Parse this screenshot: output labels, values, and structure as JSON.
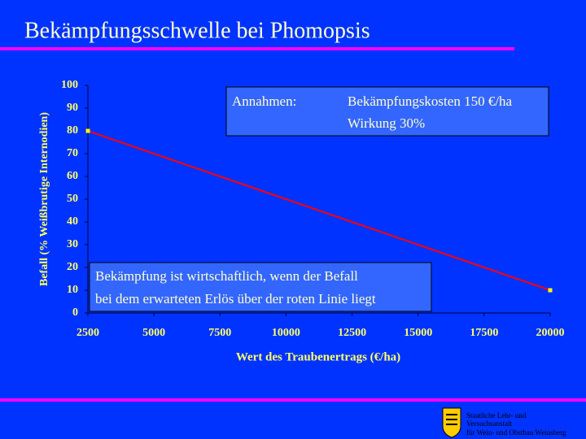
{
  "chart_data": {
    "type": "line",
    "title": "Bekämpfungsschwelle bei Phomopsis",
    "x_label": "Wert des Traubenertrags (€/ha)",
    "y_label": "Befall (% Weißbrutige Internodien)",
    "x": [
      2500,
      5000,
      7500,
      10000,
      12500,
      15000,
      17500,
      20000
    ],
    "series": [
      {
        "name": "Bekämpfungsschwelle",
        "color": "#ff0000",
        "values": [
          80,
          70,
          60,
          50,
          40,
          30,
          20,
          10
        ]
      }
    ],
    "xlim": [
      2500,
      20000
    ],
    "xticks": [
      2500,
      5000,
      7500,
      10000,
      12500,
      15000,
      17500,
      20000
    ],
    "ylim": [
      0,
      100
    ],
    "yticks": [
      0,
      10,
      20,
      30,
      40,
      50,
      60,
      70,
      80,
      90,
      100
    ],
    "grid": false,
    "assumptions_label": "Annahmen:",
    "assumptions": [
      "Bekämpfungskosten 150 €/ha",
      "Wirkung 30%"
    ],
    "note": [
      "Bekämpfung ist wirtschaftlich, wenn der Befall",
      "bei dem erwarteten Erlös über der roten Linie liegt"
    ]
  },
  "footer": {
    "lines": [
      "Staatliche Lehr- und",
      "Versuchsanstalt",
      "für Wein- und Obstbau Weinsberg"
    ]
  }
}
